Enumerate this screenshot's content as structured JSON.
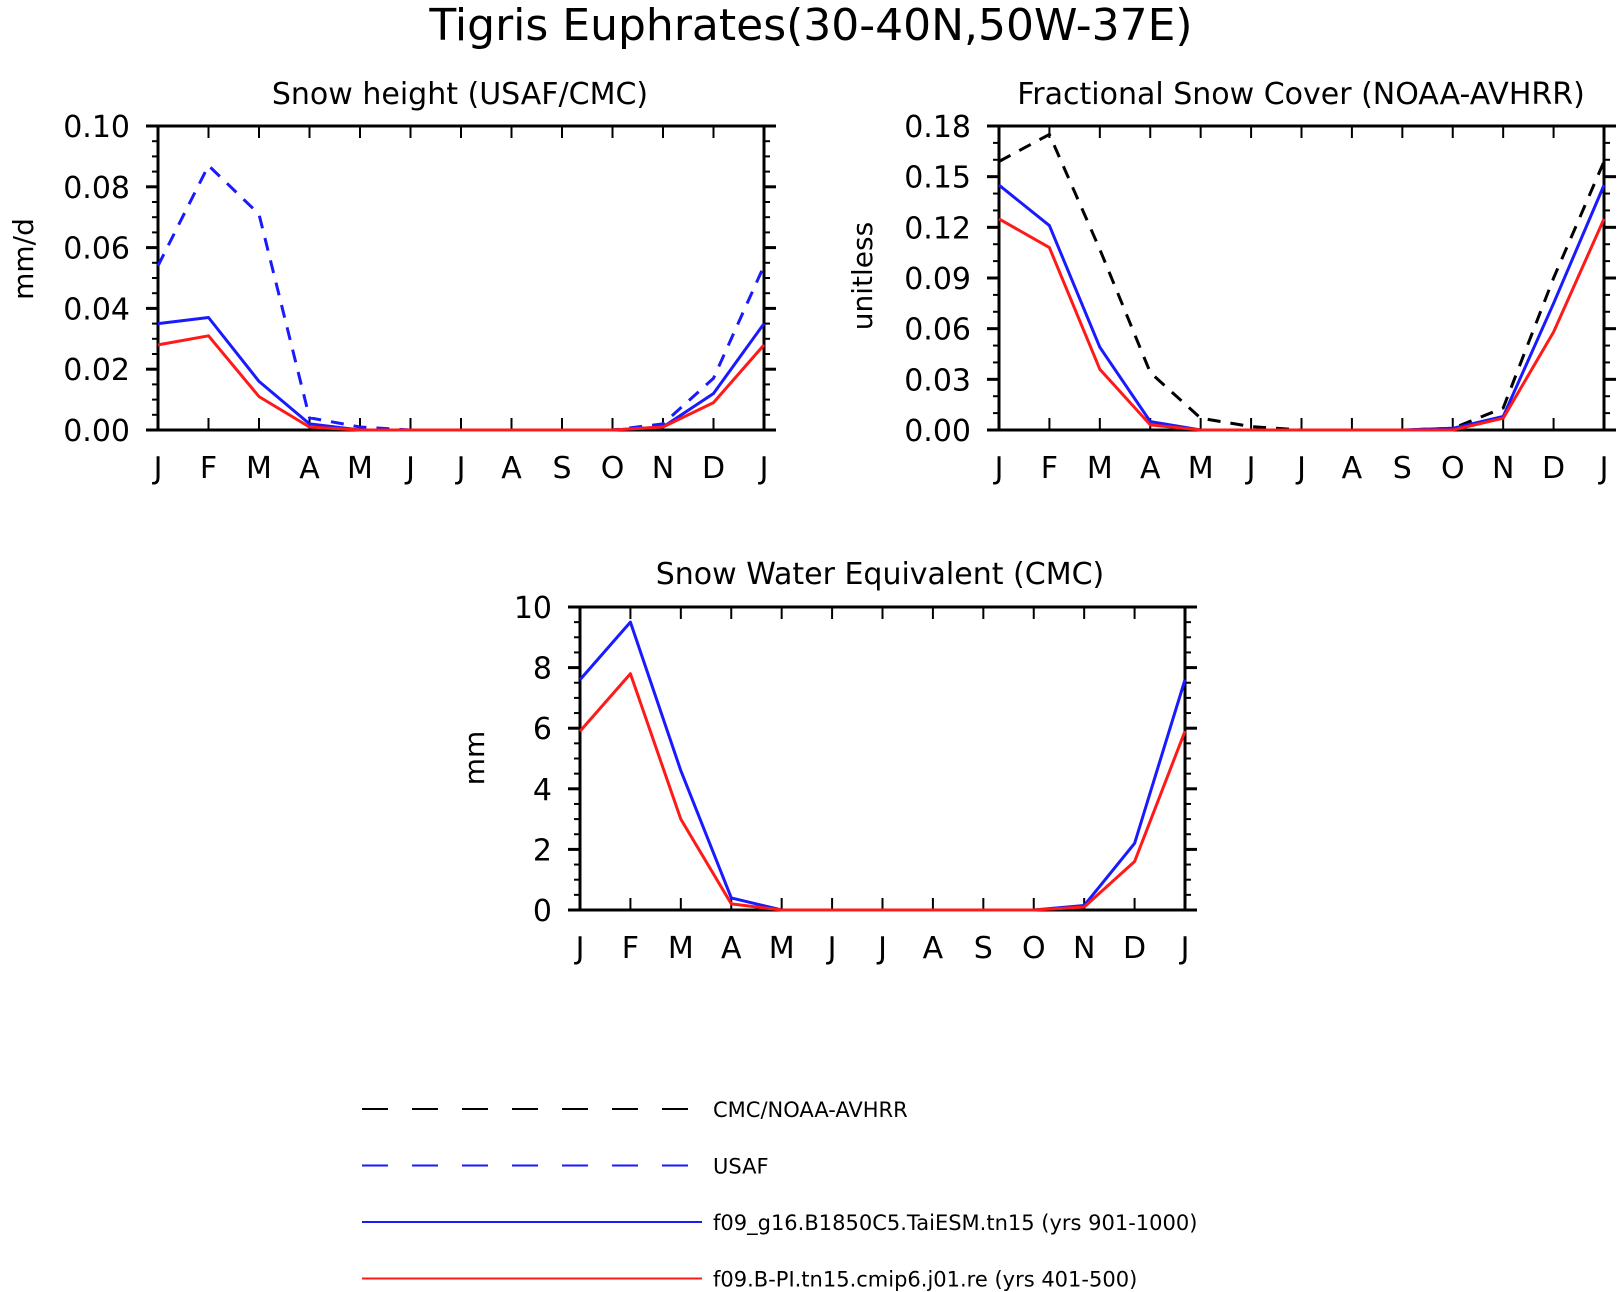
{
  "figure": {
    "title": "Tigris Euphrates(30-40N,50W-37E)"
  },
  "legend": [
    {
      "key": "obs_cmc",
      "label": "CMC/NOAA-AVHRR",
      "color": "#000000",
      "dashed": true
    },
    {
      "key": "obs_usaf",
      "label": "USAF",
      "color": "#1a1aff",
      "dashed": true
    },
    {
      "key": "model_taiesm",
      "label": "f09_g16.B1850C5.TaiESM.tn15 (yrs 901-1000)",
      "color": "#1a1aff",
      "dashed": false
    },
    {
      "key": "model_cmip6",
      "label": "f09.B-PI.tn15.cmip6.j01.re (yrs 401-500)",
      "color": "#ff1a1a",
      "dashed": false
    }
  ],
  "chart_data": [
    {
      "type": "line",
      "title": "Snow height (USAF/CMC)",
      "xlabel": "",
      "ylabel": "mm/d",
      "categories": [
        "J",
        "F",
        "M",
        "A",
        "M",
        "J",
        "J",
        "A",
        "S",
        "O",
        "N",
        "D",
        "J"
      ],
      "ylim": [
        0,
        0.1
      ],
      "yticks": [
        "0.00",
        "0.02",
        "0.04",
        "0.06",
        "0.08",
        "0.10"
      ],
      "grid": false,
      "series": [
        {
          "key": "obs_usaf",
          "values": [
            0.054,
            0.087,
            0.071,
            0.004,
            0.001,
            0.0,
            0.0,
            0.0,
            0.0,
            0.0,
            0.002,
            0.017,
            0.054
          ]
        },
        {
          "key": "model_taiesm",
          "values": [
            0.035,
            0.037,
            0.016,
            0.002,
            0.0,
            0.0,
            0.0,
            0.0,
            0.0,
            0.0,
            0.001,
            0.012,
            0.035
          ]
        },
        {
          "key": "model_cmip6",
          "values": [
            0.028,
            0.031,
            0.011,
            0.001,
            0.0,
            0.0,
            0.0,
            0.0,
            0.0,
            0.0,
            0.001,
            0.009,
            0.028
          ]
        }
      ]
    },
    {
      "type": "line",
      "title": "Fractional Snow Cover (NOAA-AVHRR)",
      "xlabel": "",
      "ylabel": "unitless",
      "categories": [
        "J",
        "F",
        "M",
        "A",
        "M",
        "J",
        "J",
        "A",
        "S",
        "O",
        "N",
        "D",
        "J"
      ],
      "ylim": [
        0,
        0.18
      ],
      "yticks": [
        "0.00",
        "0.03",
        "0.06",
        "0.09",
        "0.12",
        "0.15",
        "0.18"
      ],
      "grid": false,
      "series": [
        {
          "key": "obs_cmc",
          "values": [
            0.159,
            0.175,
            0.107,
            0.034,
            0.007,
            0.002,
            0.0,
            0.0,
            0.0,
            0.001,
            0.013,
            0.09,
            0.159
          ]
        },
        {
          "key": "model_taiesm",
          "values": [
            0.145,
            0.121,
            0.049,
            0.005,
            0.0,
            0.0,
            0.0,
            0.0,
            0.0,
            0.001,
            0.008,
            0.075,
            0.145
          ]
        },
        {
          "key": "model_cmip6",
          "values": [
            0.125,
            0.108,
            0.036,
            0.003,
            0.0,
            0.0,
            0.0,
            0.0,
            0.0,
            0.0,
            0.007,
            0.058,
            0.125
          ]
        }
      ]
    },
    {
      "type": "line",
      "title": "Snow Water Equivalent (CMC)",
      "xlabel": "",
      "ylabel": "mm",
      "categories": [
        "J",
        "F",
        "M",
        "A",
        "M",
        "J",
        "J",
        "A",
        "S",
        "O",
        "N",
        "D",
        "J"
      ],
      "ylim": [
        0,
        10
      ],
      "yticks": [
        "0",
        "2",
        "4",
        "6",
        "8",
        "10"
      ],
      "grid": false,
      "series": [
        {
          "key": "model_taiesm",
          "values": [
            7.6,
            9.5,
            4.6,
            0.4,
            0.0,
            0.0,
            0.0,
            0.0,
            0.0,
            0.0,
            0.15,
            2.2,
            7.6
          ]
        },
        {
          "key": "model_cmip6",
          "values": [
            5.9,
            7.8,
            3.0,
            0.2,
            0.0,
            0.0,
            0.0,
            0.0,
            0.0,
            0.0,
            0.1,
            1.6,
            5.9
          ]
        }
      ]
    }
  ]
}
